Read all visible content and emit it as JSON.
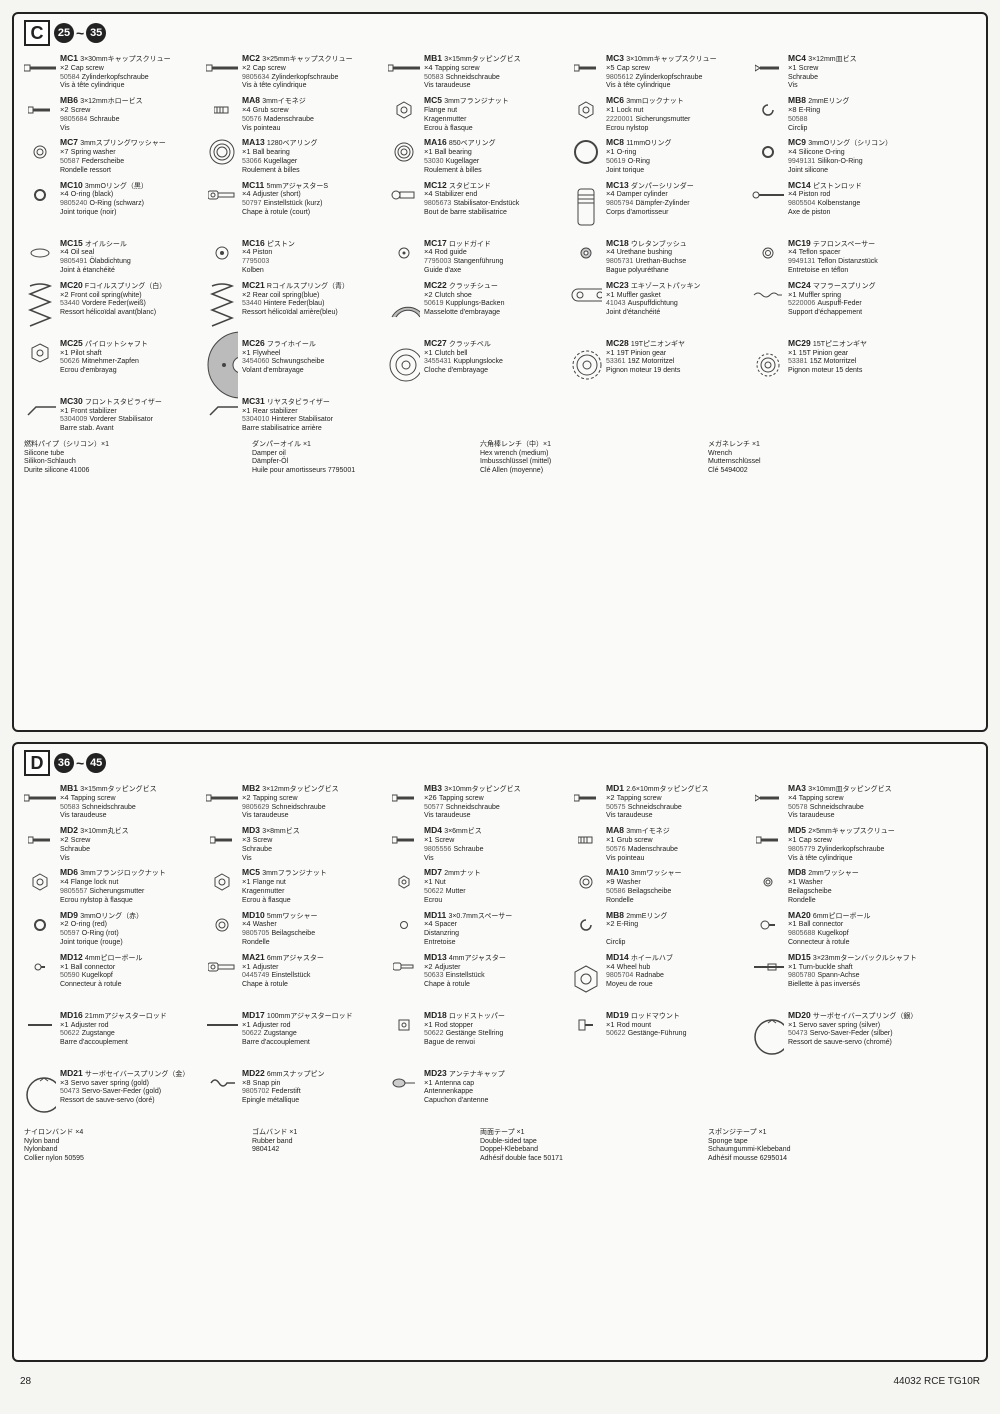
{
  "page_number": "28",
  "footer_code": "44032 RCE TG10R",
  "sections": [
    {
      "id": "C",
      "step_from": "25",
      "step_to": "35",
      "parts": [
        {
          "code": "MC1",
          "qty": "×2",
          "num": "50584",
          "jp": "3×30mmキャップスクリュー",
          "en": "Cap screw",
          "de": "Zylinderkopfschraube",
          "fr": "Vis à tête cylindrique",
          "icon": "screw-long"
        },
        {
          "code": "MC2",
          "qty": "×2",
          "num": "9805634",
          "jp": "3×25mmキャップスクリュー",
          "en": "Cap screw",
          "de": "Zylinderkopfschraube",
          "fr": "Vis à tête cylindrique",
          "icon": "screw-long"
        },
        {
          "code": "MB1",
          "qty": "×4",
          "num": "50583",
          "jp": "3×15mmタッピングビス",
          "en": "Tapping screw",
          "de": "Schneidschraube",
          "fr": "Vis taraudeuse",
          "icon": "screw-med"
        },
        {
          "code": "MC3",
          "qty": "×5",
          "num": "9805612",
          "jp": "3×10mmキャップスクリュー",
          "en": "Cap screw",
          "de": "Zylinderkopfschraube",
          "fr": "Vis à tête cylindrique",
          "icon": "screw-short"
        },
        {
          "code": "MC4",
          "qty": "×1",
          "num": "",
          "jp": "3×12mm皿ビス",
          "en": "Screw",
          "de": "Schraube",
          "fr": "Vis",
          "icon": "screw-flat"
        },
        {
          "code": "MB6",
          "qty": "×2",
          "num": "9805684",
          "jp": "3×12mmホロービス",
          "en": "Screw",
          "de": "Schraube",
          "fr": "Vis",
          "icon": "screw-short"
        },
        {
          "code": "MA8",
          "qty": "×4",
          "num": "50576",
          "jp": "3mmイモネジ",
          "en": "Grub screw",
          "de": "Madenschraube",
          "fr": "Vis pointeau",
          "icon": "grub"
        },
        {
          "code": "MC5",
          "qty": "",
          "num": "",
          "jp": "3mmフランジナット",
          "en": "Flange nut",
          "de": "Kragenmutter",
          "fr": "Ecrou à flasque",
          "icon": "nut"
        },
        {
          "code": "MC6",
          "qty": "×1",
          "num": "2220001",
          "jp": "3mmロックナット",
          "en": "Lock nut",
          "de": "Sicherungsmutter",
          "fr": "Ecrou nylstop",
          "icon": "nut"
        },
        {
          "code": "MB8",
          "qty": "×8",
          "num": "50588",
          "jp": "2mmEリング",
          "en": "E-Ring",
          "de": "",
          "fr": "Circlip",
          "icon": "ering"
        },
        {
          "code": "MC7",
          "qty": "×7",
          "num": "50587",
          "jp": "3mmスプリングワッシャー",
          "en": "Spring washer",
          "de": "Federscheibe",
          "fr": "Rondelle ressort",
          "icon": "washer"
        },
        {
          "code": "MA13",
          "qty": "×1",
          "num": "53066",
          "jp": "1280ベアリング",
          "en": "Ball bearing",
          "de": "Kugellager",
          "fr": "Roulement à billes",
          "icon": "bearing-lg"
        },
        {
          "code": "MA16",
          "qty": "×1",
          "num": "53030",
          "jp": "850ベアリング",
          "en": "Ball bearing",
          "de": "Kugellager",
          "fr": "Roulement à billes",
          "icon": "bearing-med"
        },
        {
          "code": "MC8",
          "qty": "×1",
          "num": "50619",
          "jp": "11mmOリング",
          "en": "O-ring",
          "de": "O-Ring",
          "fr": "Joint torique",
          "icon": "oring-lg"
        },
        {
          "code": "MC9",
          "qty": "×4",
          "num": "9949131",
          "jp": "3mmOリング（シリコン）",
          "en": "Silicone O-ring",
          "de": "Silikon-O-Ring",
          "fr": "Joint silicone",
          "icon": "oring-sm"
        },
        {
          "code": "MC10",
          "qty": "×4",
          "num": "9805240",
          "jp": "3mmOリング（黒）",
          "en": "O-ring (black)",
          "de": "O-Ring (schwarz)",
          "fr": "Joint torique (noir)",
          "icon": "oring-sm"
        },
        {
          "code": "MC11",
          "qty": "×4",
          "num": "50797",
          "jp": "5mmアジャスターS",
          "en": "Adjuster (short)",
          "de": "Einstellstück (kurz)",
          "fr": "Chape à rotule (court)",
          "icon": "adjuster"
        },
        {
          "code": "MC12",
          "qty": "×4",
          "num": "9805673",
          "jp": "スタビエンド",
          "en": "Stabilizer end",
          "de": "Stabilisator-Endstück",
          "fr": "Bout de barre stabilisatrice",
          "icon": "stab-end"
        },
        {
          "code": "MC13",
          "qty": "×4",
          "num": "9805794",
          "jp": "ダンパーシリンダー",
          "en": "Damper cylinder",
          "de": "Dämpfer-Zylinder",
          "fr": "Corps d'amortisseur",
          "icon": "cylinder"
        },
        {
          "code": "MC14",
          "qty": "×4",
          "num": "9805504",
          "jp": "ピストンロッド",
          "en": "Piston rod",
          "de": "Kolbenstange",
          "fr": "Axe de piston",
          "icon": "rod"
        },
        {
          "code": "MC15",
          "qty": "×4",
          "num": "9805491",
          "jp": "オイルシール",
          "en": "Oil seal",
          "de": "Ölabdichtung",
          "fr": "Joint à étanchéité",
          "icon": "seal"
        },
        {
          "code": "MC16",
          "qty": "×4",
          "num": "7795003",
          "jp": "ピストン",
          "en": "Piston",
          "de": "",
          "fr": "Kolben",
          "icon": "piston"
        },
        {
          "code": "MC17",
          "qty": "×4",
          "num": "7795003",
          "jp": "ロッドガイド",
          "en": "Rod guide",
          "de": "Stangenführung",
          "fr": "Guide d'axe",
          "icon": "guide"
        },
        {
          "code": "MC18",
          "qty": "×4",
          "num": "9805731",
          "jp": "ウレタンブッシュ",
          "en": "Urethane bushing",
          "de": "Urethan-Buchse",
          "fr": "Bague polyuréthane",
          "icon": "bushing"
        },
        {
          "code": "MC19",
          "qty": "×4",
          "num": "9949131",
          "jp": "テフロンスペーサー",
          "en": "Teflon spacer",
          "de": "Teflon Distanzstück",
          "fr": "Entretoise en téflon",
          "icon": "spacer"
        },
        {
          "code": "MC20",
          "qty": "×2",
          "num": "53440",
          "jp": "Fコイルスプリング（白）",
          "en": "Front coil spring(white)",
          "de": "Vordere Feder(weiß)",
          "fr": "Ressort hélicoïdal avant(blanc)",
          "icon": "spring"
        },
        {
          "code": "MC21",
          "qty": "×2",
          "num": "53440",
          "jp": "Rコイルスプリング（青）",
          "en": "Rear coil spring(blue)",
          "de": "Hintere Feder(blau)",
          "fr": "Ressort hélicoïdal arrière(bleu)",
          "icon": "spring"
        },
        {
          "code": "MC22",
          "qty": "×2",
          "num": "50619",
          "jp": "クラッチシュー",
          "en": "Clutch shoe",
          "de": "Kupplungs-Backen",
          "fr": "Masselotte d'embrayage",
          "icon": "clutch-shoe"
        },
        {
          "code": "MC23",
          "qty": "×1",
          "num": "41043",
          "jp": "エキゾーストパッキン",
          "en": "Muffler gasket",
          "de": "Auspuffdichtung",
          "fr": "Joint d'étanchéité",
          "icon": "gasket"
        },
        {
          "code": "MC24",
          "qty": "×1",
          "num": "5220006",
          "jp": "マフラースプリング",
          "en": "Muffler spring",
          "de": "Auspuff-Feder",
          "fr": "Support d'échappement",
          "icon": "muffler-spring"
        },
        {
          "code": "MC25",
          "qty": "×1",
          "num": "50626",
          "jp": "パイロットシャフト",
          "en": "Pilot shaft",
          "de": "Mitnehmer-Zapfen",
          "fr": "Ecrou d'embrayag",
          "icon": "pilot"
        },
        {
          "code": "MC26",
          "qty": "×1",
          "num": "3454060",
          "jp": "フライホイール",
          "en": "Flywheel",
          "de": "Schwungscheibe",
          "fr": "Volant d'embrayage",
          "icon": "flywheel"
        },
        {
          "code": "MC27",
          "qty": "×1",
          "num": "3455431",
          "jp": "クラッチベル",
          "en": "Clutch bell",
          "de": "Kupplungslocke",
          "fr": "Cloche d'embrayage",
          "icon": "clutch-bell"
        },
        {
          "code": "MC28",
          "qty": "×1",
          "num": "53361",
          "jp": "19Tピニオンギヤ",
          "en": "19T Pinion gear",
          "de": "19Z Motorritzel",
          "fr": "Pignon moteur 19 dents",
          "icon": "gear"
        },
        {
          "code": "MC29",
          "qty": "×1",
          "num": "53381",
          "jp": "15Tピニオンギヤ",
          "en": "15T Pinion gear",
          "de": "15Z Motorritzel",
          "fr": "Pignon moteur 15 dents",
          "icon": "gear-sm"
        },
        {
          "code": "MC30",
          "qty": "×1",
          "num": "5304009",
          "jp": "フロントスタビライザー",
          "en": "Front stabilizer",
          "de": "Vorderer Stabilisator",
          "fr": "Barre stab. Avant",
          "icon": "stab"
        },
        {
          "code": "MC31",
          "qty": "×1",
          "num": "5304010",
          "jp": "リヤスタビライザー",
          "en": "Rear stabilizer",
          "de": "Hinterer Stabilisator",
          "fr": "Barre stabilisatrice arrière",
          "icon": "stab"
        }
      ],
      "extras": [
        {
          "jp": "燃料パイプ（シリコン）×1",
          "en": "Silicone tube",
          "de": "Silikon-Schlauch",
          "fr": "Durite silicone  41006"
        },
        {
          "jp": "ダンパーオイル ×1",
          "en": "Damper oil",
          "de": "Dämpfer-Öl",
          "fr": "Huile pour amortisseurs  7795001"
        },
        {
          "jp": "六角棒レンチ（中）×1",
          "en": "Hex wrench (medium)",
          "de": "Imbusschlüssel (mittel)",
          "fr": "Clé Allen (moyenne)"
        },
        {
          "jp": "メガネレンチ ×1",
          "en": "Wrench",
          "de": "Mutternschlüssel",
          "fr": "Clé  5494002"
        }
      ]
    },
    {
      "id": "D",
      "step_from": "36",
      "step_to": "45",
      "parts": [
        {
          "code": "MB1",
          "qty": "×4",
          "num": "50583",
          "jp": "3×15mmタッピングビス",
          "en": "Tapping screw",
          "de": "Schneidschraube",
          "fr": "Vis taraudeuse",
          "icon": "screw-med"
        },
        {
          "code": "MB2",
          "qty": "×2",
          "num": "9805629",
          "jp": "3×12mmタッピングビス",
          "en": "Tapping screw",
          "de": "Schneidschraube",
          "fr": "Vis taraudeuse",
          "icon": "screw-med"
        },
        {
          "code": "MB3",
          "qty": "×26",
          "num": "50577",
          "jp": "3×10mmタッピングビス",
          "en": "Tapping screw",
          "de": "Schneidschraube",
          "fr": "Vis taraudeuse",
          "icon": "screw-short"
        },
        {
          "code": "MD1",
          "qty": "×2",
          "num": "50575",
          "jp": "2.6×10mmタッピングビス",
          "en": "Tapping screw",
          "de": "Schneidschraube",
          "fr": "Vis taraudeuse",
          "icon": "screw-short"
        },
        {
          "code": "MA3",
          "qty": "×4",
          "num": "50578",
          "jp": "3×10mm皿タッピングビス",
          "en": "Tapping screw",
          "de": "Schneidschraube",
          "fr": "Vis taraudeuse",
          "icon": "screw-flat"
        },
        {
          "code": "MD2",
          "qty": "×2",
          "num": "",
          "jp": "3×10mm丸ビス",
          "en": "Screw",
          "de": "Schraube",
          "fr": "Vis",
          "icon": "screw-short"
        },
        {
          "code": "MD3",
          "qty": "×3",
          "num": "",
          "jp": "3×8mmビス",
          "en": "Screw",
          "de": "Schraube",
          "fr": "Vis",
          "icon": "screw-short"
        },
        {
          "code": "MD4",
          "qty": "×1",
          "num": "9805556",
          "jp": "3×6mmビス",
          "en": "Screw",
          "de": "Schraube",
          "fr": "Vis",
          "icon": "screw-short"
        },
        {
          "code": "MA8",
          "qty": "×1",
          "num": "50576",
          "jp": "3mmイモネジ",
          "en": "Grub screw",
          "de": "Madenschraube",
          "fr": "Vis pointeau",
          "icon": "grub"
        },
        {
          "code": "MD5",
          "qty": "×1",
          "num": "9805779",
          "jp": "2×5mmキャップスクリュー",
          "en": "Cap screw",
          "de": "Zylinderkopfschraube",
          "fr": "Vis à tête cylindrique",
          "icon": "screw-short"
        },
        {
          "code": "MD6",
          "qty": "×4",
          "num": "9805557",
          "jp": "3mmフランジロックナット",
          "en": "Flange lock nut",
          "de": "Sicherungsmutter",
          "fr": "Ecrou nylstop à flasque",
          "icon": "nut"
        },
        {
          "code": "MC5",
          "qty": "×1",
          "num": "",
          "jp": "3mmフランジナット",
          "en": "Flange nut",
          "de": "Kragenmutter",
          "fr": "Ecrou à flasque",
          "icon": "nut"
        },
        {
          "code": "MD7",
          "qty": "×1",
          "num": "50622",
          "jp": "2mmナット",
          "en": "Nut",
          "de": "Mutter",
          "fr": "Ecrou",
          "icon": "nut-sm"
        },
        {
          "code": "MA10",
          "qty": "×9",
          "num": "50586",
          "jp": "3mmワッシャー",
          "en": "Washer",
          "de": "Beilagscheibe",
          "fr": "Rondelle",
          "icon": "washer"
        },
        {
          "code": "MD8",
          "qty": "×1",
          "num": "",
          "jp": "2mmワッシャー",
          "en": "Washer",
          "de": "Beilagscheibe",
          "fr": "Rondelle",
          "icon": "washer-sm"
        },
        {
          "code": "MD9",
          "qty": "×2",
          "num": "50597",
          "jp": "3mmOリング（赤）",
          "en": "O-ring (red)",
          "de": "O-Ring (rot)",
          "fr": "Joint torique (rouge)",
          "icon": "oring-sm"
        },
        {
          "code": "MD10",
          "qty": "×4",
          "num": "9805705",
          "jp": "5mmワッシャー",
          "en": "Washer",
          "de": "Beilagscheibe",
          "fr": "Rondelle",
          "icon": "washer"
        },
        {
          "code": "MD11",
          "qty": "×4",
          "num": "",
          "jp": "3×0.7mmスペーサー",
          "en": "Spacer",
          "de": "Distanzring",
          "fr": "Entretoise",
          "icon": "spacer-sm"
        },
        {
          "code": "MB8",
          "qty": "×2",
          "num": "",
          "jp": "2mmEリング",
          "en": "E-Ring",
          "de": "",
          "fr": "Circlip",
          "icon": "ering"
        },
        {
          "code": "MA20",
          "qty": "×1",
          "num": "9805688",
          "jp": "6mmピローボール",
          "en": "Ball connector",
          "de": "Kugelkopf",
          "fr": "Connecteur à rotule",
          "icon": "ball"
        },
        {
          "code": "MD12",
          "qty": "×1",
          "num": "50590",
          "jp": "4mmピローボール",
          "en": "Ball connector",
          "de": "Kugelkopf",
          "fr": "Connecteur à rotule",
          "icon": "ball-sm"
        },
        {
          "code": "MA21",
          "qty": "×1",
          "num": "0445749",
          "jp": "6mmアジャスター",
          "en": "Adjuster",
          "de": "Einstellstück",
          "fr": "Chape à rotule",
          "icon": "adjuster"
        },
        {
          "code": "MD13",
          "qty": "×2",
          "num": "50633",
          "jp": "4mmアジャスター",
          "en": "Adjuster",
          "de": "Einstellstück",
          "fr": "Chape à rotule",
          "icon": "adjuster-sm"
        },
        {
          "code": "MD14",
          "qty": "×4",
          "num": "9805704",
          "jp": "ホイールハブ",
          "en": "Wheel hub",
          "de": "Radnabe",
          "fr": "Moyeu de roue",
          "icon": "hub"
        },
        {
          "code": "MD15",
          "qty": "×1",
          "num": "9805780",
          "jp": "3×23mmターンバックルシャフト",
          "en": "Turn-buckle shaft",
          "de": "Spann-Achse",
          "fr": "Biellette à pas inversés",
          "icon": "turnbuckle"
        },
        {
          "code": "MD16",
          "qty": "×1",
          "num": "50622",
          "jp": "21mmアジャスターロッド",
          "en": "Adjuster rod",
          "de": "Zugstange",
          "fr": "Barre d'accouplement",
          "icon": "rod-short"
        },
        {
          "code": "MD17",
          "qty": "×1",
          "num": "50622",
          "jp": "100mmアジャスターロッド",
          "en": "Adjuster rod",
          "de": "Zugstange",
          "fr": "Barre d'accouplement",
          "icon": "rod-long"
        },
        {
          "code": "MD18",
          "qty": "×1",
          "num": "50622",
          "jp": "ロッドストッパー",
          "en": "Rod stopper",
          "de": "Gestänge Stellring",
          "fr": "Bague de renvoi",
          "icon": "stopper"
        },
        {
          "code": "MD19",
          "qty": "×1",
          "num": "50622",
          "jp": "ロッドマウント",
          "en": "Rod mount",
          "de": "Gestänge-Führung",
          "fr": "",
          "icon": "mount"
        },
        {
          "code": "MD20",
          "qty": "×1",
          "num": "50473",
          "jp": "サーボセイバースプリング（銀）",
          "en": "Servo saver spring (silver)",
          "de": "Servo-Saver-Feder (silber)",
          "fr": "Ressort de sauve-servo (chromé)",
          "icon": "spring-ring"
        },
        {
          "code": "MD21",
          "qty": "×3",
          "num": "50473",
          "jp": "サーボセイバースプリング（金）",
          "en": "Servo saver spring (gold)",
          "de": "Servo-Saver-Feder (gold)",
          "fr": "Ressort de sauve-servo (doré)",
          "icon": "spring-ring"
        },
        {
          "code": "MD22",
          "qty": "×8",
          "num": "9805702",
          "jp": "6mmスナップピン",
          "en": "Snap pin",
          "de": "Federstift",
          "fr": "Epingle métallique",
          "icon": "snap-pin"
        },
        {
          "code": "MD23",
          "qty": "×1",
          "num": "",
          "jp": "アンテナキャップ",
          "en": "Antenna cap",
          "de": "Antennenkappe",
          "fr": "Capuchon d'antenne",
          "icon": "antenna"
        }
      ],
      "extras": [
        {
          "jp": "ナイロンバンド ×4",
          "en": "Nylon band",
          "de": "Nylonband",
          "fr": "Collier nylon  50595"
        },
        {
          "jp": "ゴムバンド ×1",
          "en": "Rubber band",
          "de": "",
          "fr": "",
          "num": "9804142"
        },
        {
          "jp": "両面テープ ×1",
          "en": "Double-sided tape",
          "de": "Doppel-Klebeband",
          "fr": "Adhésif double face",
          "num": "50171"
        },
        {
          "jp": "スポンジテープ ×1",
          "en": "Sponge tape",
          "de": "Schaumgummi-Klebeband",
          "fr": "Adhésif mousse  6295014"
        }
      ]
    }
  ]
}
